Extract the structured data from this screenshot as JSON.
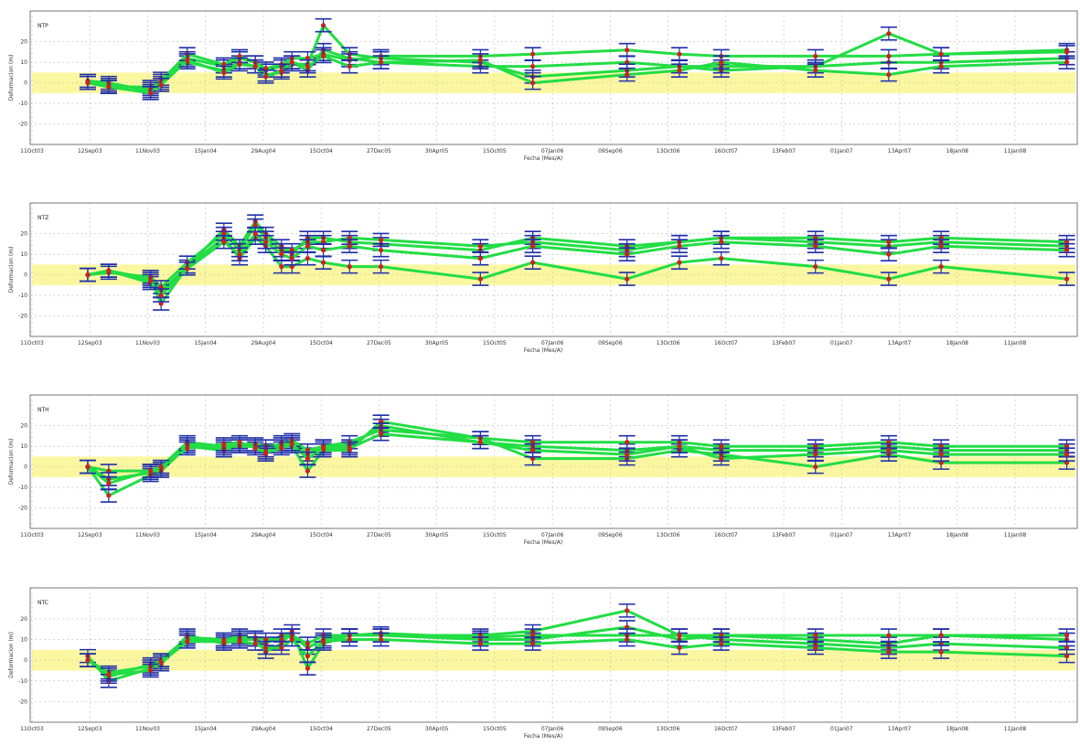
{
  "chart_data": [
    {
      "type": "errorbar-line",
      "panel_label": "NTP",
      "xlabel": "Fecha (Mes/A)",
      "ylabel": "Deformacion (m)",
      "x_tick_labels": [
        "11Oct03",
        "12Sep03",
        "11Nov03",
        "15Jan04",
        "29Aug04",
        "15Oct04",
        "27Dec05",
        "30Apr05",
        "15Oct05",
        "07Jan06",
        "09Sep06",
        "13Oct06",
        "16Oct07",
        "13Feb07",
        "01Jan07",
        "13Apr07",
        "18Jan08",
        "11Jan08"
      ],
      "y_tick_labels": [
        "20",
        "10",
        "0",
        "-10",
        "-20"
      ],
      "ylim": [
        -30,
        35
      ],
      "tolerance_band": [
        -5,
        5
      ],
      "series": [
        {
          "values": [
            0,
            -2,
            -2,
            0,
            12,
            8,
            12,
            10,
            6,
            8,
            10,
            6,
            16,
            12,
            10,
            8,
            8,
            10,
            8,
            6,
            8,
            10,
            10,
            12
          ]
        },
        {
          "values": [
            1,
            0,
            -4,
            2,
            10,
            6,
            10,
            8,
            4,
            5,
            9,
            9,
            28,
            14,
            12,
            10,
            3,
            6,
            8,
            8,
            8,
            24,
            14,
            16
          ]
        },
        {
          "values": [
            0,
            -1,
            -3,
            1,
            14,
            9,
            13,
            10,
            7,
            9,
            12,
            12,
            14,
            11,
            13,
            13,
            14,
            16,
            14,
            13,
            13,
            13,
            14,
            15
          ]
        },
        {
          "values": [
            0,
            -2,
            -5,
            -1,
            11,
            5,
            9,
            8,
            3,
            6,
            10,
            8,
            13,
            8,
            10,
            11,
            0,
            4,
            6,
            10,
            6,
            4,
            8,
            10
          ]
        }
      ]
    },
    {
      "type": "errorbar-line",
      "panel_label": "NTZ",
      "xlabel": "Fecha (Mes/A)",
      "ylabel": "Deformacion (m)",
      "x_tick_labels": [
        "11Oct03",
        "12Sep03",
        "11Nov03",
        "15Jan04",
        "29Aug04",
        "15Oct04",
        "27Dec05",
        "30Apr05",
        "15Oct05",
        "07Jan06",
        "09Sep06",
        "13Oct06",
        "16Oct07",
        "13Feb07",
        "01Jan07",
        "13Apr07",
        "18Jan08",
        "11Jan08"
      ],
      "y_tick_labels": [
        "20",
        "10",
        "0",
        "-10",
        "-20"
      ],
      "ylim": [
        -30,
        35
      ],
      "tolerance_band": [
        -5,
        5
      ],
      "series": [
        {
          "values": [
            0,
            2,
            -2,
            -14,
            4,
            22,
            14,
            26,
            20,
            14,
            10,
            18,
            18,
            16,
            15,
            12,
            18,
            14,
            16,
            18,
            16,
            14,
            16,
            14
          ]
        },
        {
          "values": [
            0,
            2,
            -4,
            -8,
            4,
            18,
            8,
            18,
            14,
            4,
            4,
            8,
            6,
            4,
            4,
            -2,
            6,
            -2,
            6,
            8,
            4,
            -2,
            4,
            -2
          ]
        },
        {
          "values": [
            0,
            1,
            -1,
            -6,
            6,
            20,
            12,
            24,
            18,
            12,
            12,
            16,
            16,
            18,
            17,
            14,
            16,
            12,
            16,
            18,
            18,
            16,
            18,
            16
          ]
        },
        {
          "values": [
            0,
            2,
            -3,
            -10,
            3,
            16,
            10,
            20,
            16,
            10,
            8,
            14,
            12,
            14,
            12,
            8,
            14,
            10,
            14,
            16,
            14,
            10,
            14,
            12
          ]
        }
      ]
    },
    {
      "type": "errorbar-line",
      "panel_label": "NTH",
      "xlabel": "Fecha (Mes/A)",
      "ylabel": "Deformacion (m)",
      "x_tick_labels": [
        "11Oct03",
        "12Sep03",
        "11Nov03",
        "15Jan04",
        "29Aug04",
        "15Oct04",
        "27Dec05",
        "30Apr05",
        "15Oct05",
        "07Jan06",
        "09Sep06",
        "13Oct06",
        "16Oct07",
        "13Feb07",
        "01Jan07",
        "13Apr07",
        "18Jan08",
        "11Jan08"
      ],
      "y_tick_labels": [
        "20",
        "10",
        "0",
        "-10",
        "-20"
      ],
      "ylim": [
        -30,
        35
      ],
      "tolerance_band": [
        -5,
        5
      ],
      "series": [
        {
          "values": [
            0,
            -2,
            -2,
            0,
            12,
            10,
            10,
            10,
            8,
            10,
            12,
            6,
            10,
            10,
            20,
            12,
            10,
            8,
            10,
            8,
            8,
            10,
            8,
            8
          ]
        },
        {
          "values": [
            0,
            -14,
            -4,
            -2,
            10,
            8,
            10,
            10,
            6,
            12,
            10,
            -2,
            8,
            8,
            22,
            14,
            4,
            4,
            8,
            6,
            0,
            6,
            2,
            2
          ]
        },
        {
          "values": [
            0,
            -6,
            -3,
            -1,
            11,
            9,
            11,
            11,
            10,
            11,
            13,
            8,
            10,
            12,
            18,
            14,
            12,
            12,
            12,
            10,
            10,
            12,
            10,
            10
          ]
        },
        {
          "values": [
            0,
            -8,
            -2,
            0,
            9,
            11,
            12,
            9,
            7,
            9,
            11,
            4,
            9,
            9,
            16,
            12,
            8,
            6,
            10,
            4,
            6,
            8,
            6,
            6
          ]
        }
      ]
    },
    {
      "type": "errorbar-line",
      "panel_label": "NTC",
      "xlabel": "Fecha (Mes/A)",
      "ylabel": "Deformacion (m)",
      "x_tick_labels": [
        "11Oct03",
        "12Sep03",
        "11Nov03",
        "15Jan04",
        "29Aug04",
        "15Oct04",
        "27Dec05",
        "30Apr05",
        "15Oct05",
        "07Jan06",
        "09Sep06",
        "13Oct06",
        "16Oct07",
        "13Feb07",
        "01Jan07",
        "13Apr07",
        "18Jan08",
        "11Jan08"
      ],
      "y_tick_labels": [
        "20",
        "10",
        "0",
        "-10",
        "-20"
      ],
      "ylim": [
        -30,
        35
      ],
      "tolerance_band": [
        -5,
        5
      ],
      "series": [
        {
          "values": [
            0,
            -8,
            -2,
            0,
            10,
            10,
            12,
            10,
            8,
            12,
            12,
            6,
            10,
            12,
            12,
            10,
            10,
            16,
            10,
            12,
            10,
            8,
            12,
            10
          ]
        },
        {
          "values": [
            2,
            -10,
            -4,
            -2,
            12,
            8,
            10,
            10,
            4,
            8,
            14,
            -4,
            8,
            12,
            12,
            12,
            14,
            24,
            12,
            10,
            8,
            6,
            8,
            6
          ]
        },
        {
          "values": [
            0,
            -6,
            -3,
            0,
            11,
            10,
            11,
            11,
            10,
            10,
            12,
            8,
            12,
            12,
            13,
            11,
            12,
            12,
            12,
            12,
            12,
            12,
            12,
            12
          ]
        },
        {
          "values": [
            0,
            -7,
            -5,
            -1,
            9,
            9,
            9,
            8,
            6,
            6,
            10,
            2,
            9,
            10,
            10,
            8,
            8,
            10,
            6,
            8,
            6,
            4,
            4,
            2
          ]
        }
      ]
    }
  ],
  "colors": {
    "line": "#22dd44",
    "errorbar": "#1f2fa8",
    "marker": "#cc2222",
    "band": "#fbf7a0",
    "grid": "#bbbbbb",
    "frame": "#555555"
  }
}
